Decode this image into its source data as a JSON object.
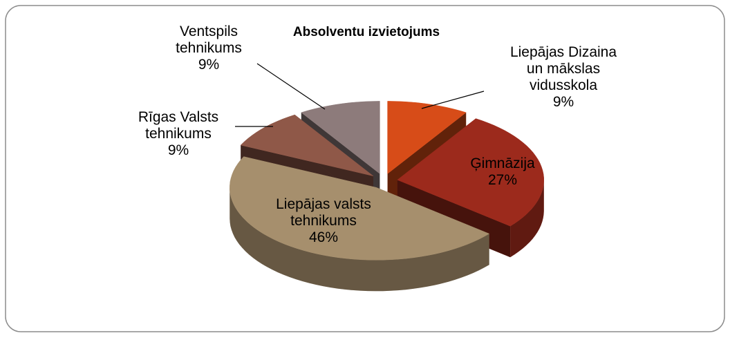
{
  "chart_data": {
    "type": "pie3d",
    "title": "Absolventu izvietojums",
    "categories": [
      "Liepājas Dizaina\nun mākslas\nvidusskola",
      "Ģimnāzija",
      "Liepājas valsts\ntehnikums",
      "Rīgas Valsts\ntehnikums",
      "Ventspils\ntehnikums"
    ],
    "values": [
      9,
      27,
      46,
      9,
      9
    ],
    "value_labels": [
      "9%",
      "27%",
      "46%",
      "9%",
      "9%"
    ],
    "colors": [
      "#d74c18",
      "#9c2a1c",
      "#a68f6d",
      "#8f5848",
      "#8d7b7b"
    ]
  }
}
